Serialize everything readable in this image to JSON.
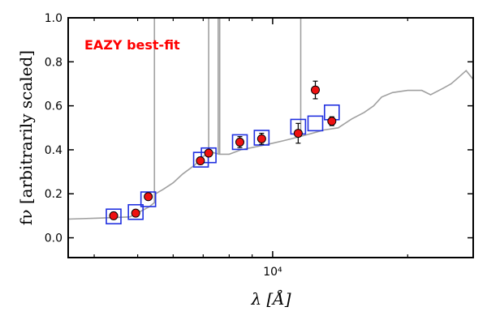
{
  "chart_data": {
    "type": "scatter",
    "title": "",
    "annotation": "EAZY best-fit",
    "annotation_color": "#ff0000",
    "xlabel": "λ [Å]",
    "ylabel": "fν [arbitrarily scaled]",
    "xscale": "log",
    "xlim": [
      3500,
      28000
    ],
    "ylim": [
      -0.09,
      1.0
    ],
    "grid": false,
    "x_tick_label": "10⁴",
    "y_tick_labels": [
      "0.0",
      "0.2",
      "0.4",
      "0.6",
      "0.8",
      "1.0"
    ],
    "y_ticks": [
      0.0,
      0.2,
      0.4,
      0.6,
      0.8,
      1.0
    ],
    "model_color": "#a0a0a0",
    "model_spectrum": {
      "x": [
        3500,
        4200,
        4800,
        5300,
        5450,
        5480,
        5700,
        6000,
        6300,
        6700,
        7000,
        7300,
        7600,
        8000,
        8500,
        9000,
        9500,
        10000,
        10500,
        11000,
        11500,
        12000,
        12500,
        13000,
        14000,
        15000,
        16000,
        16800,
        17500,
        18500,
        20000,
        21500,
        22500,
        24000,
        25000,
        26000,
        27000,
        28000
      ],
      "y": [
        0.085,
        0.09,
        0.095,
        0.14,
        0.16,
        0.2,
        0.22,
        0.25,
        0.29,
        0.33,
        0.37,
        0.39,
        0.38,
        0.38,
        0.4,
        0.41,
        0.42,
        0.43,
        0.44,
        0.45,
        0.46,
        0.47,
        0.48,
        0.49,
        0.5,
        0.54,
        0.57,
        0.6,
        0.64,
        0.66,
        0.67,
        0.67,
        0.65,
        0.68,
        0.7,
        0.73,
        0.76,
        0.72
      ]
    },
    "emission_lines": [
      {
        "x": 5450,
        "y_top": 1.0
      },
      {
        "x": 7200,
        "y_top": 1.0
      },
      {
        "x": 7560,
        "y_top": 1.0
      },
      {
        "x": 7620,
        "y_top": 1.0
      },
      {
        "x": 11550,
        "y_top": 1.0
      }
    ],
    "model_photometry_color": "#2030e0",
    "model_photometry": [
      {
        "x": 4420,
        "y": 0.097
      },
      {
        "x": 4950,
        "y": 0.117
      },
      {
        "x": 5280,
        "y": 0.175
      },
      {
        "x": 6920,
        "y": 0.355
      },
      {
        "x": 7200,
        "y": 0.375
      },
      {
        "x": 8450,
        "y": 0.435
      },
      {
        "x": 9450,
        "y": 0.455
      },
      {
        "x": 11400,
        "y": 0.505
      },
      {
        "x": 12450,
        "y": 0.52
      },
      {
        "x": 13550,
        "y": 0.57
      }
    ],
    "observed_color": "#ee1111",
    "observed": [
      {
        "x": 4420,
        "y": 0.1,
        "err": 0.015
      },
      {
        "x": 4950,
        "y": 0.112,
        "err": 0.01
      },
      {
        "x": 5280,
        "y": 0.187,
        "err": 0.01
      },
      {
        "x": 6900,
        "y": 0.35,
        "err": 0.015
      },
      {
        "x": 7200,
        "y": 0.385,
        "err": 0.015
      },
      {
        "x": 8450,
        "y": 0.435,
        "err": 0.025
      },
      {
        "x": 9450,
        "y": 0.45,
        "err": 0.025
      },
      {
        "x": 11400,
        "y": 0.475,
        "err": 0.045
      },
      {
        "x": 12450,
        "y": 0.672,
        "err": 0.04
      },
      {
        "x": 13550,
        "y": 0.53,
        "err": 0.02
      }
    ]
  }
}
